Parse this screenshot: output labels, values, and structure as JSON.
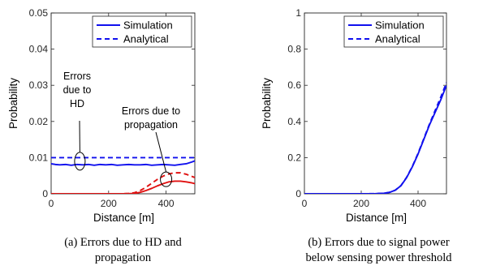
{
  "chart_data": [
    {
      "type": "line",
      "xlabel": "Distance [m]",
      "ylabel": "Probability",
      "xlim": [
        0,
        500
      ],
      "ylim": [
        0,
        0.05
      ],
      "xticks": [
        "0",
        "200",
        "400"
      ],
      "yticks": [
        "0",
        "0.01",
        "0.02",
        "0.03",
        "0.04",
        "0.05"
      ],
      "legend": [
        "Simulation",
        "Analytical"
      ],
      "legend_position": "top-right",
      "grid": false,
      "annotations": [
        {
          "id": "hd",
          "lines": [
            "Errors",
            "due to",
            "HD"
          ]
        },
        {
          "id": "prop",
          "lines": [
            "Errors due to",
            "propagation"
          ]
        }
      ],
      "caption_lines": [
        "(a) Errors due to HD and",
        "propagation"
      ],
      "colors": {
        "simulation_hd": "#1010ee",
        "analytical_hd": "#1010ee",
        "simulation_prop": "#e01010",
        "analytical_prop": "#e01010"
      },
      "series": [
        {
          "group": "hd",
          "style": "solid",
          "color": "#1010ee",
          "x": [
            0,
            15,
            30,
            50,
            70,
            90,
            110,
            130,
            150,
            170,
            190,
            210,
            230,
            250,
            270,
            290,
            310,
            330,
            350,
            370,
            390,
            410,
            430,
            450,
            470,
            490,
            500
          ],
          "y": [
            0.0083,
            0.0081,
            0.008,
            0.0081,
            0.0079,
            0.0081,
            0.008,
            0.0081,
            0.0079,
            0.0081,
            0.008,
            0.0081,
            0.0079,
            0.008,
            0.0081,
            0.008,
            0.008,
            0.0081,
            0.0079,
            0.008,
            0.0081,
            0.008,
            0.0079,
            0.0081,
            0.0083,
            0.0088,
            0.0091
          ]
        },
        {
          "group": "hd",
          "style": "dashed",
          "color": "#1010ee",
          "x": [
            0,
            500
          ],
          "y": [
            0.01,
            0.01
          ]
        },
        {
          "group": "prop",
          "style": "solid",
          "color": "#e01010",
          "x": [
            0,
            100,
            200,
            250,
            270,
            290,
            310,
            330,
            350,
            370,
            390,
            410,
            430,
            450,
            470,
            490,
            500
          ],
          "y": [
            0,
            0,
            0,
            2e-05,
            5e-05,
            0.0001,
            0.0004,
            0.0009,
            0.0015,
            0.0022,
            0.0028,
            0.0033,
            0.0035,
            0.0035,
            0.0033,
            0.003,
            0.0028
          ]
        },
        {
          "group": "prop",
          "style": "dashed",
          "color": "#e01010",
          "x": [
            0,
            100,
            200,
            250,
            270,
            290,
            310,
            330,
            350,
            370,
            390,
            410,
            430,
            450,
            470,
            490,
            500
          ],
          "y": [
            0,
            0,
            0,
            2e-05,
            0.0001,
            0.0003,
            0.0009,
            0.0018,
            0.0029,
            0.004,
            0.0049,
            0.0055,
            0.0058,
            0.0058,
            0.0054,
            0.0048,
            0.0045
          ]
        }
      ]
    },
    {
      "type": "line",
      "xlabel": "Distance [m]",
      "ylabel": "Probability",
      "xlim": [
        0,
        500
      ],
      "ylim": [
        0,
        1
      ],
      "xticks": [
        "0",
        "200",
        "400"
      ],
      "yticks": [
        "0",
        "0.2",
        "0.4",
        "0.6",
        "0.8",
        "1"
      ],
      "legend": [
        "Simulation",
        "Analytical"
      ],
      "legend_position": "top-right",
      "grid": false,
      "caption_lines": [
        "(b) Errors due to signal power",
        "below sensing power threshold"
      ],
      "colors": {
        "simulation": "#1010ee",
        "analytical": "#1010ee"
      },
      "series": [
        {
          "name": "Simulation",
          "style": "solid",
          "color": "#1010ee",
          "x": [
            0,
            100,
            200,
            250,
            280,
            300,
            320,
            340,
            360,
            380,
            400,
            420,
            440,
            460,
            480,
            500
          ],
          "y": [
            0,
            0,
            0,
            0.001,
            0.003,
            0.008,
            0.02,
            0.045,
            0.09,
            0.15,
            0.22,
            0.3,
            0.38,
            0.45,
            0.52,
            0.6
          ]
        },
        {
          "name": "Analytical",
          "style": "dashed",
          "color": "#1010ee",
          "x": [
            0,
            100,
            200,
            250,
            280,
            300,
            320,
            340,
            360,
            380,
            400,
            420,
            440,
            460,
            480,
            500
          ],
          "y": [
            0,
            0,
            0,
            0.001,
            0.003,
            0.008,
            0.02,
            0.046,
            0.092,
            0.152,
            0.224,
            0.304,
            0.385,
            0.46,
            0.535,
            0.615
          ]
        }
      ]
    }
  ]
}
